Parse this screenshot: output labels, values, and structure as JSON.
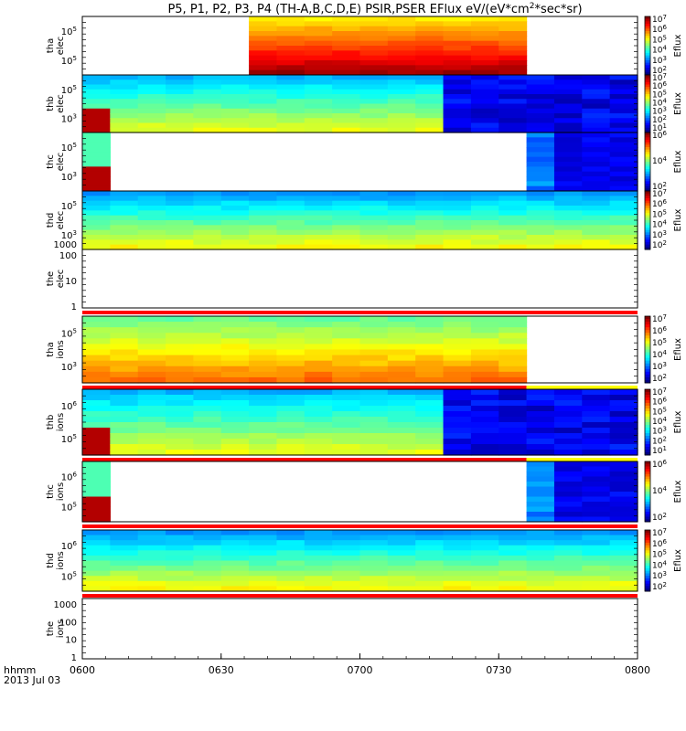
{
  "chart_data": {
    "type": "heatmap",
    "title": "P5, P1, P2, P3, P4 (TH-A,B,C,D,E) PSIR,PSER EFlux eV/(eV*cm",
    "title_sup": "2",
    "title_tail": "*sec*sr)",
    "x_ticks": [
      "0600",
      "0630",
      "0700",
      "0730",
      "0800"
    ],
    "x_range": [
      "0600",
      "0800"
    ],
    "x_label_line1": "hhmm",
    "x_label_line2": "2013 Jul 03",
    "colorbar_label": "Eflux",
    "panels": [
      {
        "name": "tha elec",
        "ylabel_line1": "tha",
        "ylabel_line2": "elec",
        "yticks": [
          {
            "base": "10",
            "exp": "5"
          },
          {
            "base": "10",
            "exp": "5"
          }
        ],
        "data_window": [
          0.31,
          0.81
        ],
        "style": "hot",
        "colorbar_ticks": [
          {
            "base": "10",
            "exp": "7"
          },
          {
            "base": "10",
            "exp": "6"
          },
          {
            "base": "10",
            "exp": "5"
          },
          {
            "base": "10",
            "exp": "4"
          },
          {
            "base": "10",
            "exp": "3"
          },
          {
            "base": "10",
            "exp": "2"
          }
        ]
      },
      {
        "name": "thb elec",
        "ylabel_line1": "thb",
        "ylabel_line2": "elec",
        "yticks": [
          {
            "base": "10",
            "exp": "5"
          },
          {
            "base": "10",
            "exp": "3"
          }
        ],
        "data_window": [
          0.0,
          1.0
        ],
        "style": "mixed",
        "colorbar_ticks": [
          {
            "base": "10",
            "exp": "7"
          },
          {
            "base": "10",
            "exp": "6"
          },
          {
            "base": "10",
            "exp": "5"
          },
          {
            "base": "10",
            "exp": "4"
          },
          {
            "base": "10",
            "exp": "3"
          },
          {
            "base": "10",
            "exp": "2"
          },
          {
            "base": "10",
            "exp": "1"
          }
        ]
      },
      {
        "name": "thc elec",
        "ylabel_line1": "thc",
        "ylabel_line2": "elec",
        "yticks": [
          {
            "base": "10",
            "exp": "5"
          },
          {
            "base": "10",
            "exp": "3"
          }
        ],
        "data_window": [
          0.0,
          1.0
        ],
        "style": "sparse",
        "colorbar_ticks": [
          {
            "base": "10",
            "exp": "6"
          },
          {
            "base": "10",
            "exp": "4"
          },
          {
            "base": "10",
            "exp": "2"
          }
        ]
      },
      {
        "name": "thd elec",
        "ylabel_line1": "thd",
        "ylabel_line2": "elec",
        "yticks": [
          {
            "base": "10",
            "exp": "5"
          },
          {
            "base": "10",
            "exp": "3"
          }
        ],
        "ytick_plain": [
          "1000"
        ],
        "data_window": [
          0.0,
          1.0
        ],
        "style": "cool",
        "colorbar_ticks": [
          {
            "base": "10",
            "exp": "7"
          },
          {
            "base": "10",
            "exp": "6"
          },
          {
            "base": "10",
            "exp": "5"
          },
          {
            "base": "10",
            "exp": "4"
          },
          {
            "base": "10",
            "exp": "3"
          },
          {
            "base": "10",
            "exp": "2"
          }
        ]
      },
      {
        "name": "the elec",
        "ylabel_line1": "the",
        "ylabel_line2": "elec",
        "yticks_plain": [
          "100",
          "10",
          "1"
        ],
        "style": "empty"
      },
      {
        "name": "tha ions",
        "ylabel_line1": "tha",
        "ylabel_line2": "ions",
        "yticks": [
          {
            "base": "10",
            "exp": "5"
          },
          {
            "base": "10",
            "exp": "3"
          }
        ],
        "data_window": [
          0.0,
          0.81
        ],
        "style": "warm",
        "colorbar_ticks": [
          {
            "base": "10",
            "exp": "7"
          },
          {
            "base": "10",
            "exp": "6"
          },
          {
            "base": "10",
            "exp": "5"
          },
          {
            "base": "10",
            "exp": "4"
          },
          {
            "base": "10",
            "exp": "3"
          },
          {
            "base": "10",
            "exp": "2"
          }
        ]
      },
      {
        "name": "thb ions",
        "ylabel_line1": "thb",
        "ylabel_line2": "ions",
        "yticks": [
          {
            "base": "10",
            "exp": "6"
          },
          {
            "base": "10",
            "exp": "5"
          }
        ],
        "data_window": [
          0.0,
          1.0
        ],
        "style": "mixed",
        "colorbar_ticks": [
          {
            "base": "10",
            "exp": "7"
          },
          {
            "base": "10",
            "exp": "6"
          },
          {
            "base": "10",
            "exp": "5"
          },
          {
            "base": "10",
            "exp": "4"
          },
          {
            "base": "10",
            "exp": "3"
          },
          {
            "base": "10",
            "exp": "2"
          },
          {
            "base": "10",
            "exp": "1"
          }
        ]
      },
      {
        "name": "thc ions",
        "ylabel_line1": "thc",
        "ylabel_line2": "ions",
        "yticks": [
          {
            "base": "10",
            "exp": "6"
          },
          {
            "base": "10",
            "exp": "5"
          }
        ],
        "data_window": [
          0.0,
          1.0
        ],
        "style": "sparse",
        "colorbar_ticks": [
          {
            "base": "10",
            "exp": "6"
          },
          {
            "base": "10",
            "exp": "4"
          },
          {
            "base": "10",
            "exp": "2"
          }
        ]
      },
      {
        "name": "thd ions",
        "ylabel_line1": "thd",
        "ylabel_line2": "ions",
        "yticks": [
          {
            "base": "10",
            "exp": "6"
          },
          {
            "base": "10",
            "exp": "5"
          }
        ],
        "data_window": [
          0.0,
          1.0
        ],
        "style": "cool",
        "colorbar_ticks": [
          {
            "base": "10",
            "exp": "7"
          },
          {
            "base": "10",
            "exp": "6"
          },
          {
            "base": "10",
            "exp": "5"
          },
          {
            "base": "10",
            "exp": "4"
          },
          {
            "base": "10",
            "exp": "3"
          },
          {
            "base": "10",
            "exp": "2"
          }
        ]
      },
      {
        "name": "the ions",
        "ylabel_line1": "the",
        "ylabel_line2": "ions",
        "yticks_plain": [
          "1000",
          "100",
          "10",
          "1"
        ],
        "style": "empty"
      }
    ],
    "grid": false,
    "colors": {
      "red_bar": "#ff0000",
      "yellow_bar": "#ffff00"
    }
  }
}
